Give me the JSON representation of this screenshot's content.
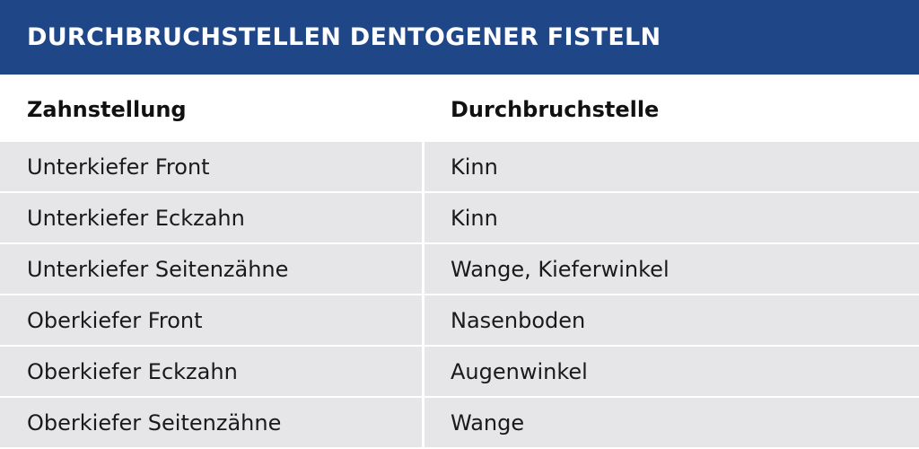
{
  "title": "DURCHBRUCHSTELLEN DENTOGENER FISTELN",
  "colors": {
    "title_bar": "#1f4788",
    "row_background": "#e6e6e8"
  },
  "table": {
    "headers": [
      "Zahnstellung",
      "Durchbruchstelle"
    ],
    "rows": [
      [
        "Unterkiefer Front",
        "Kinn"
      ],
      [
        "Unterkiefer Eckzahn",
        "Kinn"
      ],
      [
        "Unterkiefer Seitenzähne",
        "Wange, Kieferwinkel"
      ],
      [
        "Oberkiefer Front",
        "Nasenboden"
      ],
      [
        "Oberkiefer Eckzahn",
        "Augenwinkel"
      ],
      [
        "Oberkiefer Seitenzähne",
        "Wange"
      ]
    ]
  }
}
